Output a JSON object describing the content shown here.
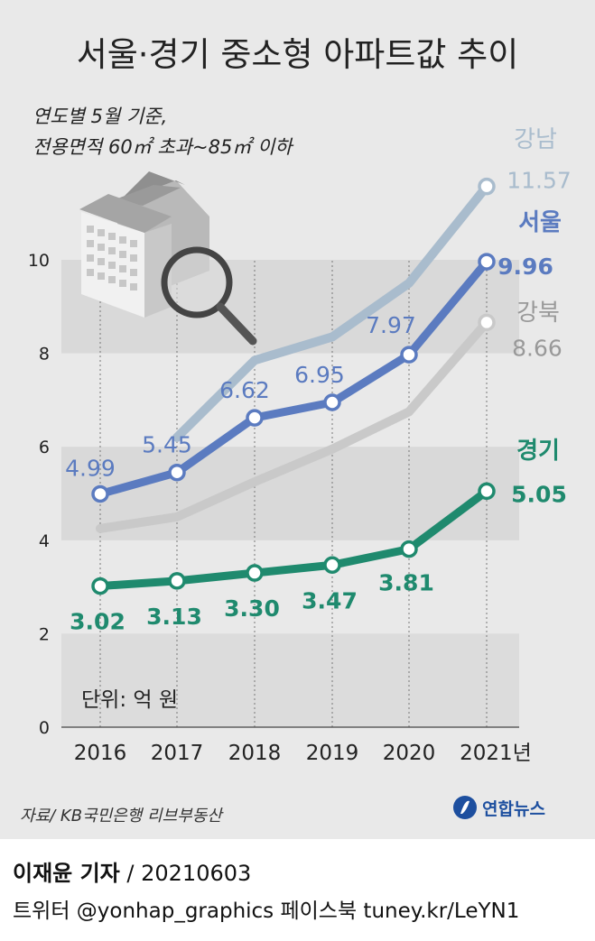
{
  "title": "서울·경기 중소형 아파트값 추이",
  "subtitle_line1": "연도별 5월 기준,",
  "subtitle_line2": "전용면적 60㎡ 초과~85㎡ 이하",
  "unit_label": "단위: 억 원",
  "source": "자료/ KB국민은행 리브부동산",
  "logo_text": "연합뉴스",
  "reporter": "이재윤 기자",
  "date": " / 20210603",
  "footer_social": "트위터 @yonhap_graphics  페이스북 tuney.kr/LeYN1",
  "colors": {
    "gangnam": "#a9bccd",
    "seoul": "#5b7bc0",
    "gangbuk": "#c9c9c9",
    "gyeonggi": "#1f8a6e"
  },
  "chart_data": {
    "type": "line",
    "x": [
      "2016",
      "2017",
      "2018",
      "2019",
      "2020",
      "2021년"
    ],
    "ylim": [
      0,
      10
    ],
    "yticks": [
      "0",
      "2",
      "4",
      "6",
      "8",
      "10"
    ],
    "series": [
      {
        "name": "강남",
        "values": [
          null,
          6.2,
          7.85,
          8.35,
          9.5,
          11.57
        ],
        "labels": [
          "",
          "",
          "",
          "",
          "",
          "11.57"
        ]
      },
      {
        "name": "서울",
        "values": [
          4.99,
          5.45,
          6.62,
          6.95,
          7.97,
          9.96
        ],
        "labels": [
          "4.99",
          "5.45",
          "6.62",
          "6.95",
          "7.97",
          "9.96"
        ]
      },
      {
        "name": "강북",
        "values": [
          4.25,
          4.5,
          5.25,
          5.95,
          6.75,
          8.66
        ],
        "labels": [
          "",
          "",
          "",
          "",
          "",
          "8.66"
        ]
      },
      {
        "name": "경기",
        "values": [
          3.02,
          3.13,
          3.3,
          3.47,
          3.81,
          5.05
        ],
        "labels": [
          "3.02",
          "3.13",
          "3.30",
          "3.47",
          "3.81",
          "5.05"
        ]
      }
    ]
  }
}
